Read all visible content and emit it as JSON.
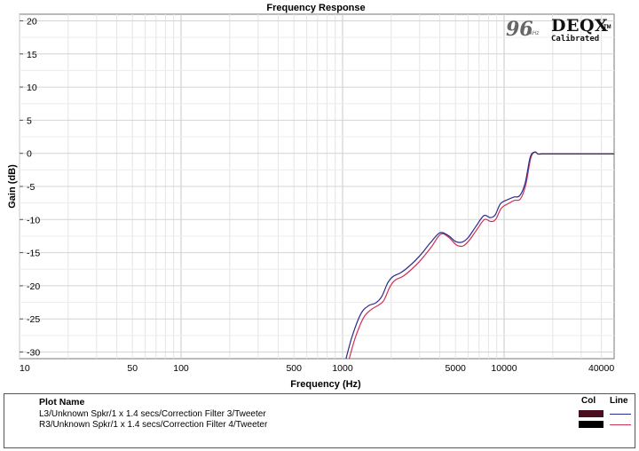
{
  "chart_data": {
    "type": "line",
    "title": "Frequency Response",
    "xlabel": "Frequency (Hz)",
    "ylabel": "Gain (dB)",
    "xscale": "log",
    "xlim": [
      10,
      48000
    ],
    "ylim": [
      -31,
      21
    ],
    "x_ticks": [
      10,
      50,
      100,
      500,
      1000,
      5000,
      10000,
      40000
    ],
    "y_ticks": [
      20,
      15,
      10,
      5,
      0,
      -5,
      -10,
      -15,
      -20,
      -25,
      -30
    ],
    "grid": true,
    "series": [
      {
        "name": "L3/Unknown Spkr/1 x 1.4 secs/Correction Filter 3/Tweeter",
        "color": "#2b2b8c",
        "x": [
          1050,
          1150,
          1300,
          1450,
          1600,
          1750,
          1900,
          2050,
          2300,
          2600,
          3000,
          3500,
          4000,
          4500,
          5000,
          5500,
          6000,
          6700,
          7500,
          8200,
          8800,
          9500,
          10500,
          11500,
          12500,
          13500,
          14500,
          15500,
          16200,
          17000,
          17800,
          18500,
          20000,
          30000,
          48000
        ],
        "y": [
          -31,
          -27.5,
          -24.2,
          -23.0,
          -22.6,
          -21.6,
          -19.6,
          -18.6,
          -18.0,
          -17.0,
          -15.5,
          -13.5,
          -12.0,
          -12.4,
          -13.3,
          -13.4,
          -12.7,
          -11.0,
          -9.4,
          -9.7,
          -9.3,
          -7.6,
          -7.0,
          -6.6,
          -6.4,
          -4.5,
          -0.6,
          0.2,
          -0.1,
          -0.1,
          -0.1,
          -0.1,
          -0.1,
          -0.1,
          -0.1
        ]
      },
      {
        "name": "R3/Unknown Spkr/1 x 1.4 secs/Correction Filter 4/Tweeter",
        "color": "#cc3355",
        "x": [
          1100,
          1200,
          1350,
          1500,
          1650,
          1800,
          1950,
          2100,
          2350,
          2650,
          3050,
          3550,
          4050,
          4550,
          5050,
          5550,
          6050,
          6750,
          7550,
          8250,
          8850,
          9600,
          10600,
          11600,
          12600,
          13600,
          14600,
          15500,
          16200,
          17000,
          17800,
          18500,
          20000,
          30000,
          48000
        ],
        "y": [
          -31,
          -27.8,
          -24.8,
          -23.6,
          -23.0,
          -22.2,
          -20.3,
          -19.2,
          -18.6,
          -17.6,
          -16.1,
          -14.1,
          -12.2,
          -12.7,
          -13.8,
          -14.0,
          -13.2,
          -11.6,
          -10.0,
          -10.3,
          -10.0,
          -8.3,
          -7.6,
          -7.1,
          -6.9,
          -4.8,
          -0.8,
          0.2,
          -0.1,
          -0.1,
          -0.1,
          -0.1,
          -0.1,
          -0.1,
          -0.1
        ]
      }
    ]
  },
  "logo": {
    "rate": "96",
    "unit": "kHz",
    "brand": "DEQX",
    "trademark": "TM",
    "tagline": "Calibrated"
  },
  "legend": {
    "header_name": "Plot Name",
    "header_col": "Col",
    "header_line": "Line",
    "rows": [
      {
        "name": "L3/Unknown Spkr/1 x 1.4 secs/Correction Filter 3/Tweeter",
        "col_color": "#4a0f1f",
        "line_color": "#2b2b8c"
      },
      {
        "name": "R3/Unknown Spkr/1 x 1.4 secs/Correction Filter 4/Tweeter",
        "col_color": "#000000",
        "line_color": "#cc3355"
      }
    ]
  }
}
